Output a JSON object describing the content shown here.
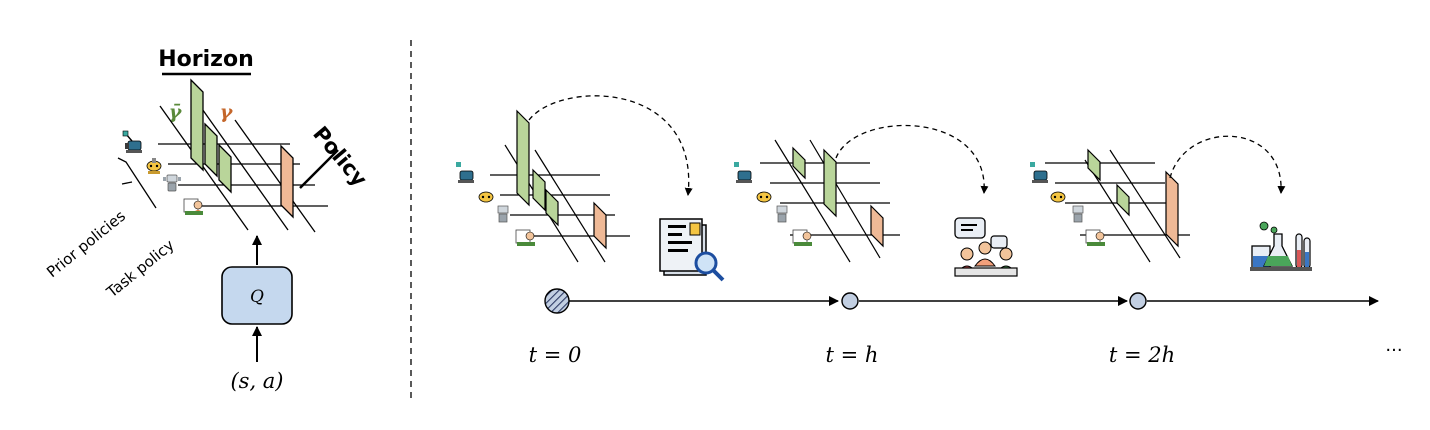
{
  "left_panel": {
    "horizon_label": "Horizon",
    "policy_label": "Policy",
    "gamma_bar_label": "γ̄",
    "gamma_label": "γ",
    "prior_policies_label": "Prior policies",
    "task_policy_label": "Task policy",
    "q_label": "Q",
    "input_label": "(s, a)"
  },
  "timeline": {
    "ticks": [
      {
        "label": "t = 0",
        "marker": "hatched",
        "icon": "document-search-icon"
      },
      {
        "label": "t = h",
        "marker": "open",
        "icon": "meeting-icon"
      },
      {
        "label": "t = 2h",
        "marker": "open",
        "icon": "lab-flasks-icon"
      }
    ],
    "continuation": "···"
  },
  "colors": {
    "green_panel": "#b9d59a",
    "orange_panel": "#efb996",
    "gamma_bar_color": "#5a8a3a",
    "gamma_color": "#c4662a",
    "q_box_fill": "#c5d8ee",
    "marker_fill": "#c2cfe2"
  }
}
